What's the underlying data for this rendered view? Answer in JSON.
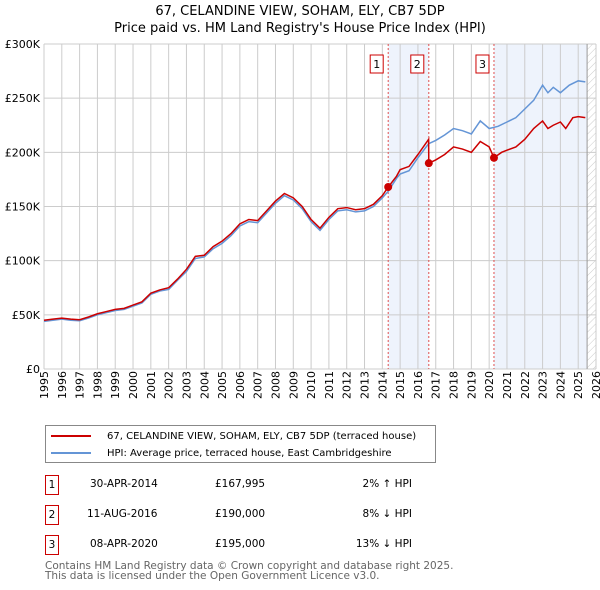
{
  "chart_data": {
    "type": "line",
    "title": "67, CELANDINE VIEW, SOHAM, ELY, CB7 5DP",
    "subtitle": "Price paid vs. HM Land Registry's House Price Index (HPI)",
    "xlim": [
      1995,
      2026
    ],
    "ylim": [
      0,
      300000
    ],
    "y_ticks": [
      {
        "v": 0,
        "label": "£0"
      },
      {
        "v": 50000,
        "label": "£50K"
      },
      {
        "v": 100000,
        "label": "£100K"
      },
      {
        "v": 150000,
        "label": "£150K"
      },
      {
        "v": 200000,
        "label": "£200K"
      },
      {
        "v": 250000,
        "label": "£250K"
      },
      {
        "v": 300000,
        "label": "£300K"
      }
    ],
    "x_ticks": [
      "1995",
      "1996",
      "1997",
      "1998",
      "1999",
      "2000",
      "2001",
      "2002",
      "2003",
      "2004",
      "2005",
      "2006",
      "2007",
      "2008",
      "2009",
      "2010",
      "2011",
      "2012",
      "2013",
      "2014",
      "2015",
      "2016",
      "2017",
      "2018",
      "2019",
      "2020",
      "2021",
      "2022",
      "2023",
      "2024",
      "2025",
      "2026"
    ],
    "grid": true,
    "series": [
      {
        "name": "67, CELANDINE VIEW, SOHAM, ELY, CB7 5DP (terraced house)",
        "color": "#cc0000",
        "x": [
          1995,
          1995.5,
          1996,
          1996.5,
          1997,
          1997.5,
          1998,
          1998.5,
          1999,
          1999.5,
          2000,
          2000.5,
          2001,
          2001.5,
          2002,
          2002.5,
          2003,
          2003.5,
          2004,
          2004.5,
          2005,
          2005.5,
          2006,
          2006.5,
          2007,
          2007.5,
          2008,
          2008.5,
          2009,
          2009.5,
          2010,
          2010.5,
          2011,
          2011.5,
          2012,
          2012.5,
          2013,
          2013.5,
          2014,
          2014.33,
          2014.8,
          2015,
          2015.5,
          2016,
          2016.6,
          2016.61,
          2017,
          2017.5,
          2018,
          2018.5,
          2019,
          2019.5,
          2020,
          2020.27,
          2020.7,
          2021,
          2021.5,
          2022,
          2022.5,
          2023,
          2023.3,
          2023.6,
          2024,
          2024.3,
          2024.7,
          2025,
          2025.4
        ],
        "y": [
          45000,
          46000,
          47000,
          46000,
          45500,
          48000,
          51000,
          53000,
          55000,
          56000,
          59000,
          62000,
          70000,
          73000,
          75000,
          83000,
          92000,
          104000,
          105000,
          113000,
          118000,
          125000,
          134000,
          138000,
          137000,
          146000,
          155000,
          162000,
          158000,
          150000,
          138000,
          130000,
          140000,
          148000,
          149000,
          147000,
          148000,
          152000,
          160000,
          167995,
          178000,
          184000,
          187000,
          198000,
          212000,
          190000,
          193000,
          198000,
          205000,
          203000,
          200000,
          210000,
          205000,
          195000,
          200000,
          202000,
          205000,
          212000,
          222000,
          229000,
          222000,
          225000,
          228000,
          222000,
          232000,
          233000,
          232000
        ]
      },
      {
        "name": "HPI: Average price, terraced house, East Cambridgeshire",
        "color": "#6495d6",
        "x": [
          1995,
          1995.5,
          1996,
          1996.5,
          1997,
          1997.5,
          1998,
          1998.5,
          1999,
          1999.5,
          2000,
          2000.5,
          2001,
          2001.5,
          2002,
          2002.5,
          2003,
          2003.5,
          2004,
          2004.5,
          2005,
          2005.5,
          2006,
          2006.5,
          2007,
          2007.5,
          2008,
          2008.5,
          2009,
          2009.5,
          2010,
          2010.5,
          2011,
          2011.5,
          2012,
          2012.5,
          2013,
          2013.5,
          2014,
          2014.33,
          2014.8,
          2015,
          2015.5,
          2016,
          2016.6,
          2017,
          2017.5,
          2018,
          2018.5,
          2019,
          2019.5,
          2020,
          2020.5,
          2021,
          2021.5,
          2022,
          2022.5,
          2023,
          2023.3,
          2023.6,
          2024,
          2024.5,
          2025,
          2025.4
        ],
        "y": [
          44000,
          45000,
          46000,
          45000,
          44500,
          47000,
          50000,
          52000,
          54000,
          55000,
          58000,
          61000,
          69000,
          72000,
          73500,
          82000,
          90000,
          102000,
          103500,
          111000,
          116000,
          123000,
          132000,
          136000,
          135000,
          144000,
          153000,
          160000,
          156000,
          148000,
          136000,
          128000,
          138000,
          146000,
          147000,
          145000,
          146000,
          150000,
          158000,
          164000,
          176000,
          180000,
          183000,
          195000,
          208000,
          211000,
          216000,
          222000,
          220000,
          217000,
          229000,
          222000,
          224000,
          228000,
          232000,
          240000,
          248000,
          262000,
          255000,
          260000,
          255000,
          262000,
          266000,
          265000
        ]
      }
    ],
    "sales": [
      {
        "n": "1",
        "x": 2014.33,
        "y": 167995
      },
      {
        "n": "2",
        "x": 2016.61,
        "y": 190000
      },
      {
        "n": "3",
        "x": 2020.27,
        "y": 195000
      }
    ],
    "shaded": [
      [
        2014.33,
        2016.61
      ],
      [
        2020.27,
        2025.5
      ]
    ],
    "hatched_from": 2025.5,
    "legend": "bottom"
  },
  "table": [
    {
      "n": "1",
      "date": "30-APR-2014",
      "price": "£167,995",
      "hpi": "2% ↑ HPI"
    },
    {
      "n": "2",
      "date": "11-AUG-2016",
      "price": "£190,000",
      "hpi": "8% ↓ HPI"
    },
    {
      "n": "3",
      "date": "08-APR-2020",
      "price": "£195,000",
      "hpi": "13% ↓ HPI"
    }
  ],
  "footer": {
    "line1": "Contains HM Land Registry data © Crown copyright and database right 2025.",
    "line2": "This data is licensed under the Open Government Licence v3.0."
  }
}
